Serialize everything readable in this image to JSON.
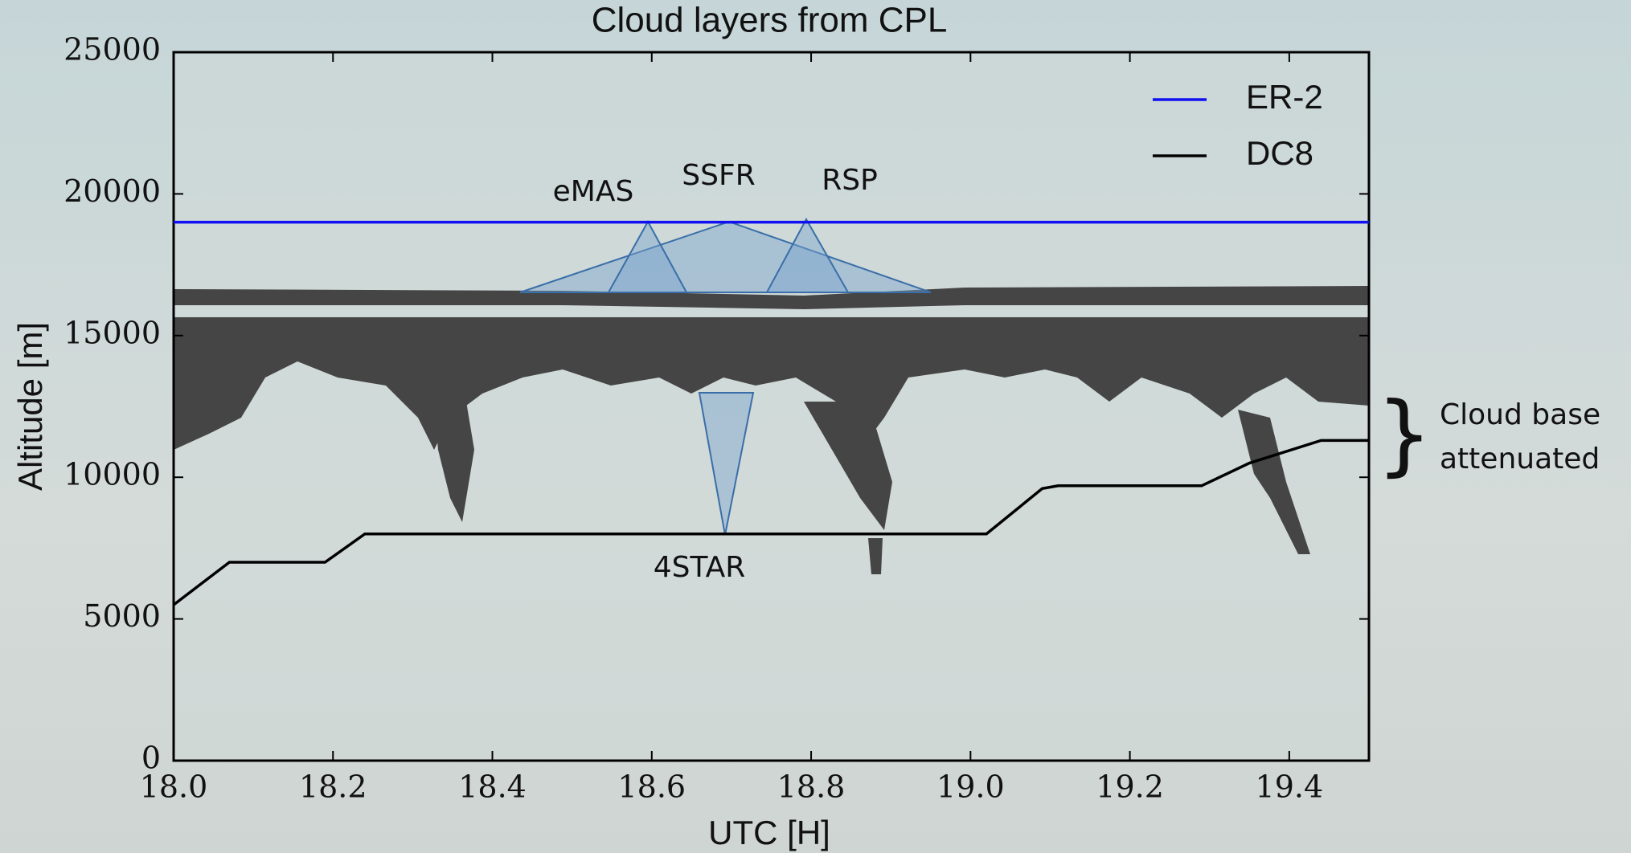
{
  "chart_data": {
    "type": "line",
    "title": "Cloud layers from CPL",
    "x_label": "UTC [H]",
    "y_label": "Altitude [m]",
    "xlim": [
      18.0,
      19.5
    ],
    "xticks": [
      {
        "value": 18,
        "label": "18.0"
      },
      18.2,
      18.4,
      18.6,
      18.8,
      {
        "value": 19,
        "label": "19.0"
      },
      19.2,
      19.4
    ],
    "ylim": [
      0,
      25000
    ],
    "yticks": [
      0,
      5000,
      10000,
      15000,
      20000,
      25000
    ],
    "legend": "upper right",
    "series": [
      {
        "name": "ER-2",
        "color": "#1010f0",
        "x": [
          18.0,
          19.5
        ],
        "values": [
          19000,
          19000
        ]
      },
      {
        "name": "DC8",
        "color": "#000000",
        "x": [
          18.0,
          18.07,
          18.19,
          18.24,
          19.02,
          19.09,
          19.11,
          19.29,
          19.35,
          19.44,
          19.5
        ],
        "values": [
          5500,
          7000,
          7000,
          8000,
          8000,
          9600,
          9700,
          9700,
          10500,
          11300,
          11300
        ]
      }
    ],
    "annotations": {
      "emas": "eMAS",
      "ssfr": "SSFR",
      "rsp": "RSP",
      "fourstar": "4STAR",
      "cloud_base": [
        "Cloud base",
        "attenuated"
      ]
    }
  }
}
